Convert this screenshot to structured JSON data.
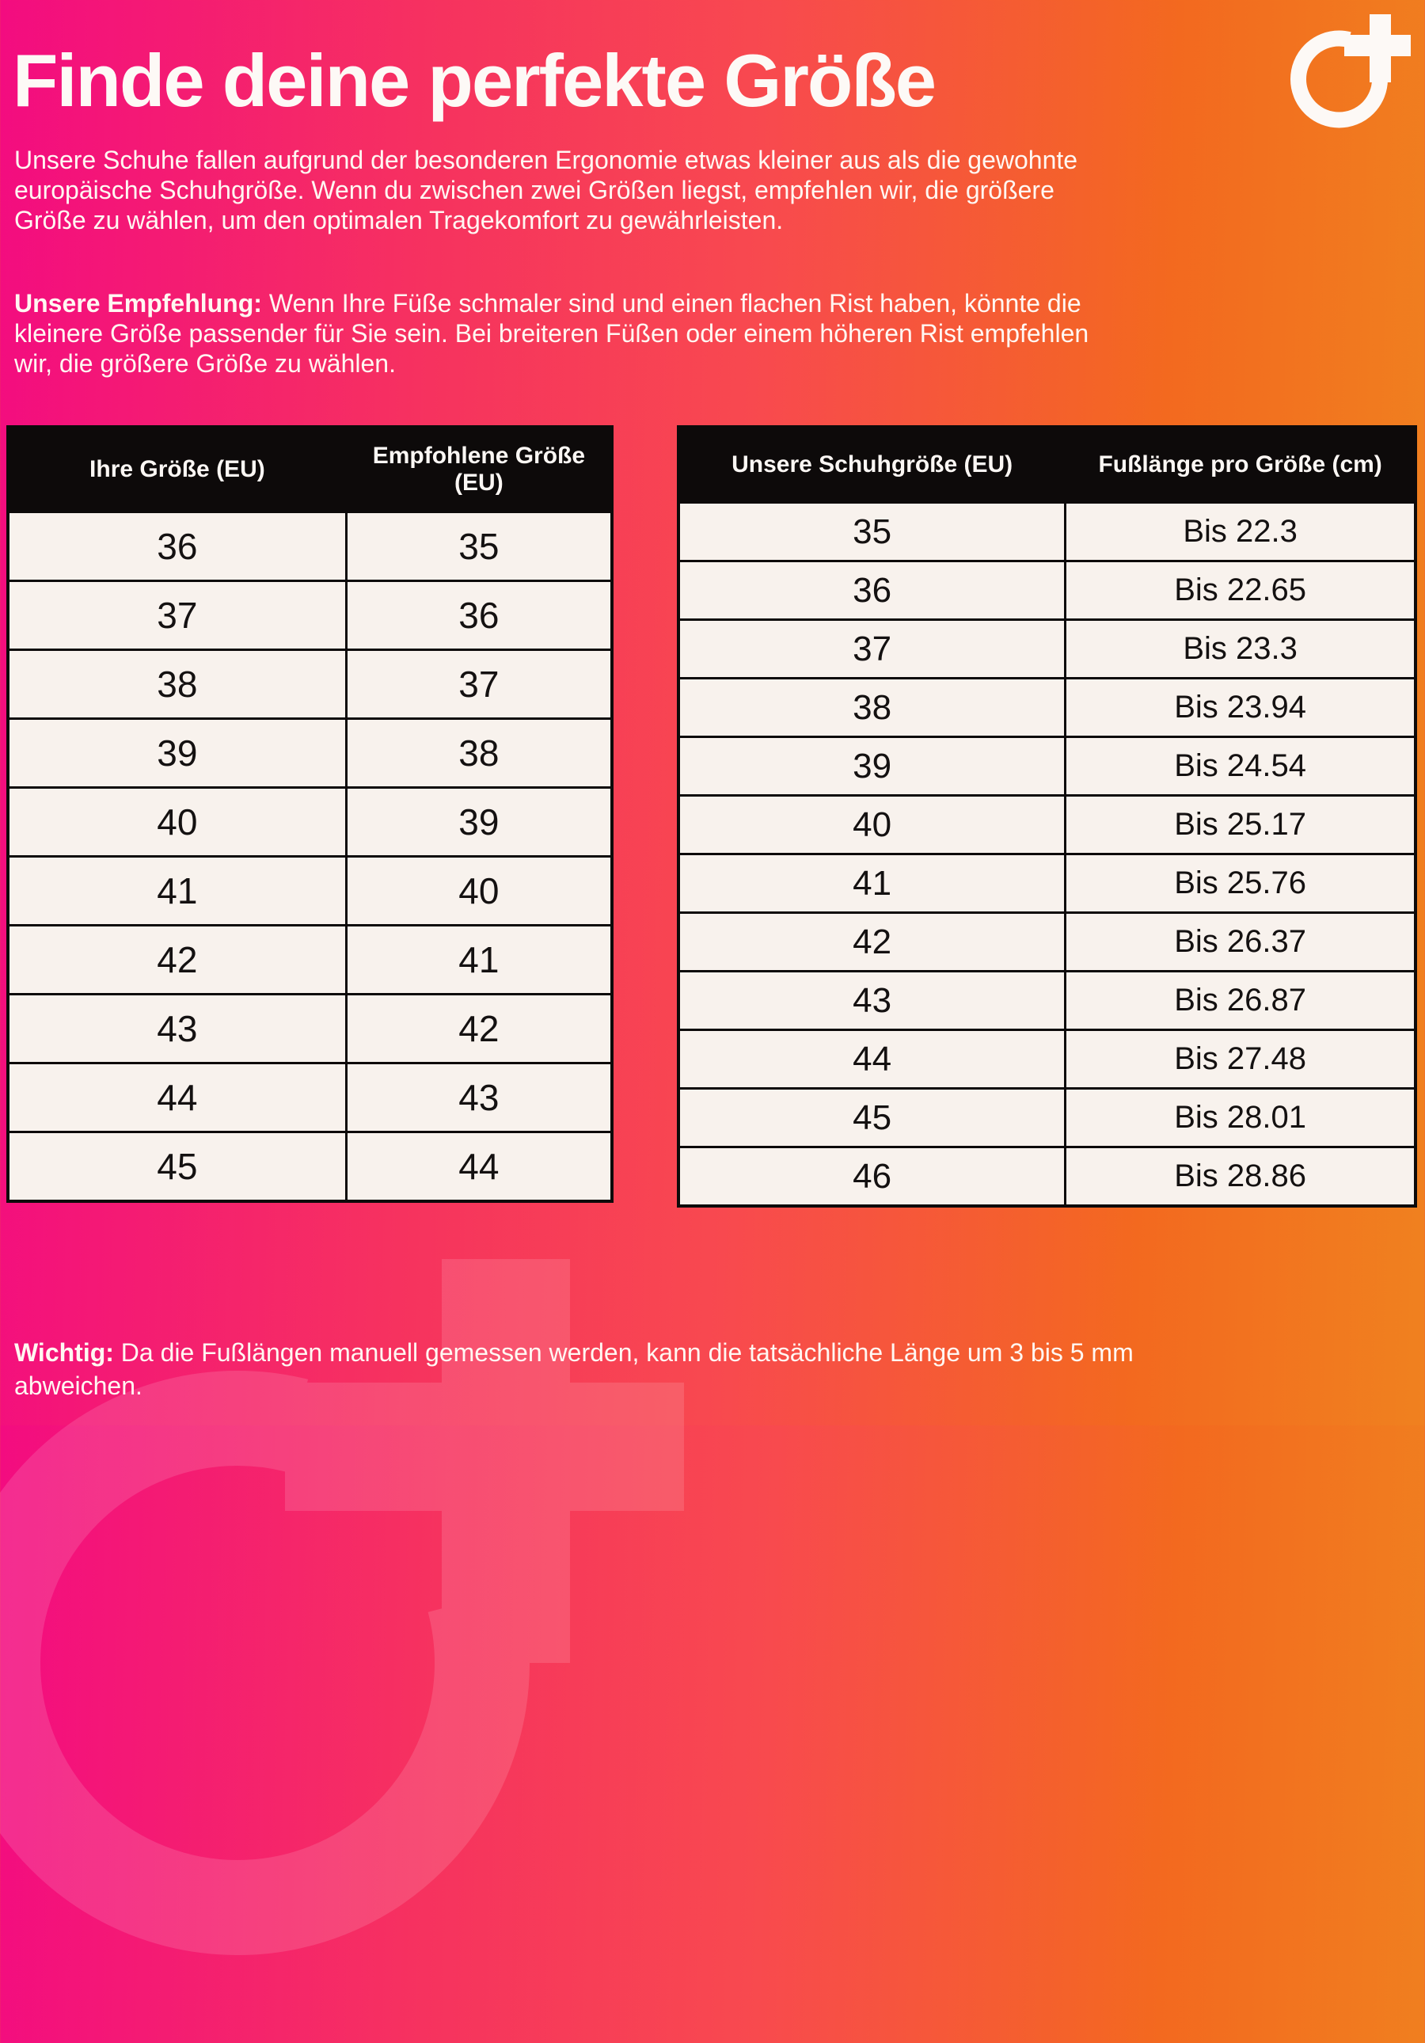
{
  "page": {
    "title": "Finde deine perfekte Größe",
    "intro_lines": [
      "Unsere Schuhe fallen aufgrund der besonderen Ergonomie etwas kleiner aus als die gewohnte",
      "europäische Schuhgröße. Wenn du zwischen zwei Größen liegst, empfehlen wir, die größere",
      "Größe zu wählen, um den optimalen Tragekomfort zu gewährleisten."
    ],
    "recommendation": {
      "label": "Unsere Empfehlung:",
      "line1_rest": " Wenn Ihre Füße schmaler sind und einen flachen Rist haben, könnte die",
      "rest_lines": [
        "kleinere Größe passender für Sie sein. Bei breiteren Füßen oder einem höheren Rist empfehlen",
        "wir, die größere Größe zu wählen."
      ]
    },
    "footer": {
      "label": "Wichtig:",
      "line1_rest": " Da die Fußlängen manuell gemessen werden, kann die tatsächliche Länge um 3 bis 5 mm",
      "rest_lines": [
        "abweichen."
      ]
    }
  },
  "logo": {
    "name": "circle-plus-brand-logo"
  },
  "tables": {
    "size_conversion": {
      "headers": [
        "Ihre Größe (EU)",
        "Empfohlene Größe (EU)"
      ],
      "rows": [
        [
          "36",
          "35"
        ],
        [
          "37",
          "36"
        ],
        [
          "38",
          "37"
        ],
        [
          "39",
          "38"
        ],
        [
          "40",
          "39"
        ],
        [
          "41",
          "40"
        ],
        [
          "42",
          "41"
        ],
        [
          "43",
          "42"
        ],
        [
          "44",
          "43"
        ],
        [
          "45",
          "44"
        ]
      ]
    },
    "foot_length": {
      "headers": [
        "Unsere Schuhgröße (EU)",
        "Fußlänge pro Größe (cm)"
      ],
      "rows": [
        [
          "35",
          "Bis 22.3"
        ],
        [
          "36",
          "Bis 22.65"
        ],
        [
          "37",
          "Bis 23.3"
        ],
        [
          "38",
          "Bis 23.94"
        ],
        [
          "39",
          "Bis 24.54"
        ],
        [
          "40",
          "Bis 25.17"
        ],
        [
          "41",
          "Bis 25.76"
        ],
        [
          "42",
          "Bis 26.37"
        ],
        [
          "43",
          "Bis 26.87"
        ],
        [
          "44",
          "Bis 27.48"
        ],
        [
          "45",
          "Bis 28.01"
        ],
        [
          "46",
          "Bis 28.86"
        ]
      ]
    }
  },
  "colors": {
    "pink": "#F30C80",
    "red_mid": "#F8494F",
    "orange": "#F0811F",
    "header_bg": "#0D0A0A",
    "cell_bg": "#F8F2ED",
    "text_light": "#FFF7F2"
  }
}
